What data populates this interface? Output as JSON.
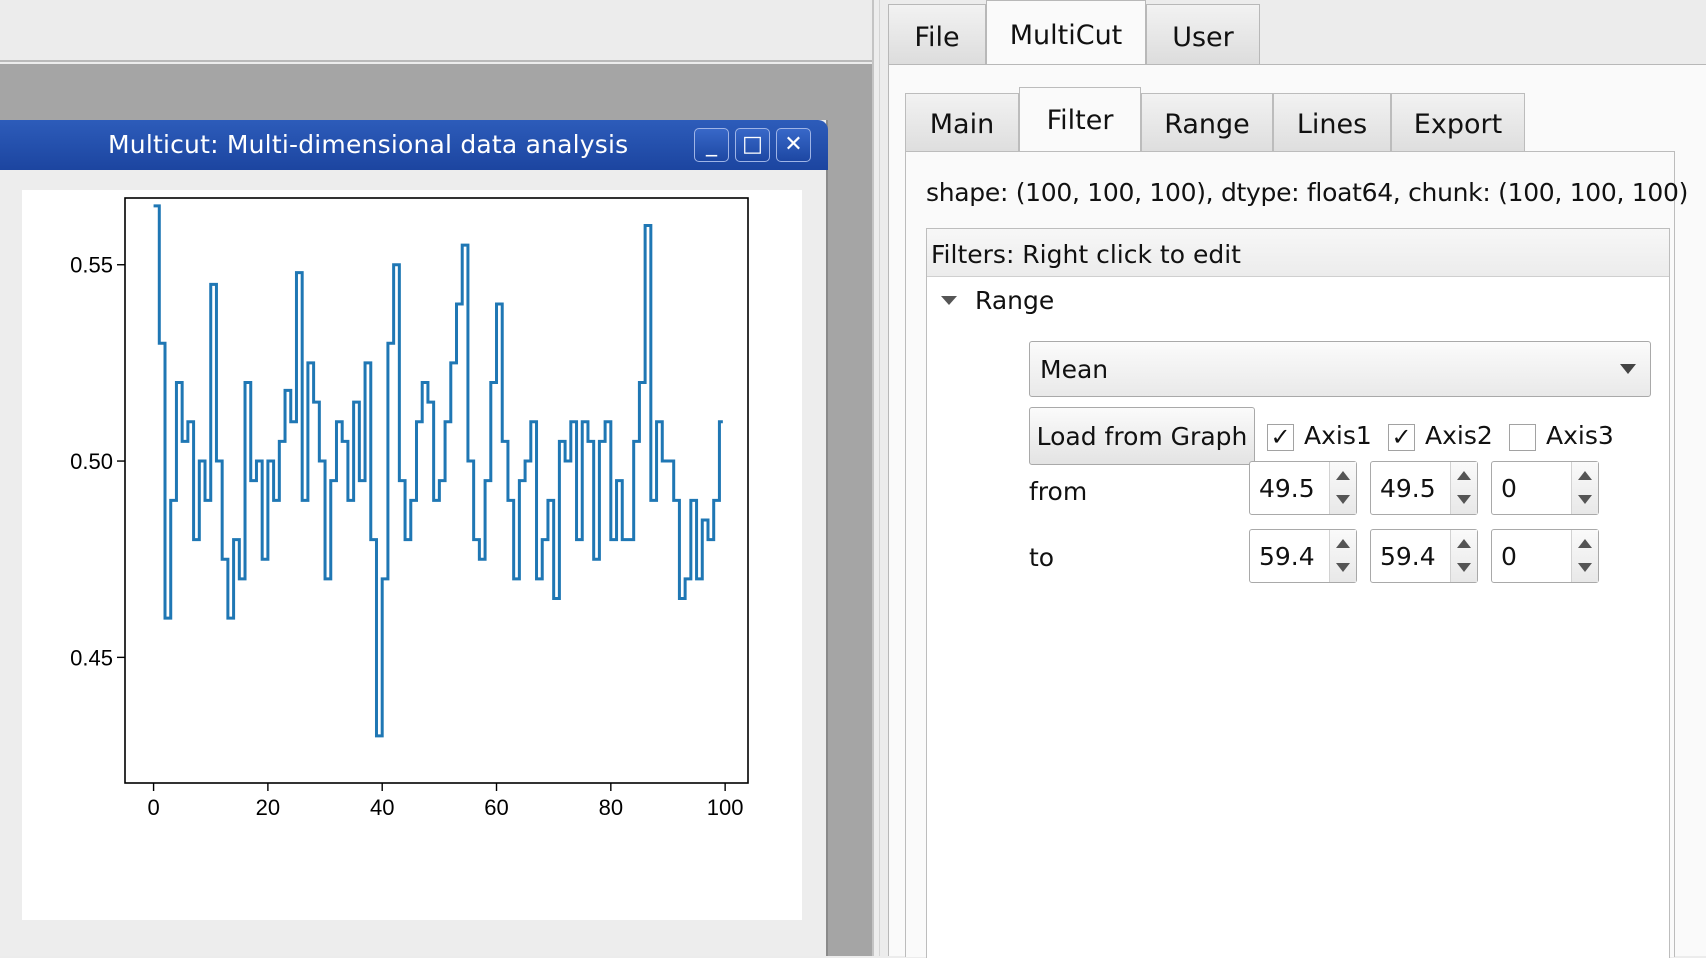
{
  "subwindow": {
    "title": "Multicut: Multi-dimensional data analysis",
    "minimize_glyph": "_",
    "maximize_glyph": "□",
    "close_glyph": "✕"
  },
  "outer_tabs": [
    {
      "label": "File",
      "active": false
    },
    {
      "label": "MultiCut",
      "active": true
    },
    {
      "label": "User",
      "active": false
    }
  ],
  "inner_tabs": [
    {
      "label": "Main",
      "active": false
    },
    {
      "label": "Filter",
      "active": true
    },
    {
      "label": "Range",
      "active": false
    },
    {
      "label": "Lines",
      "active": false
    },
    {
      "label": "Export",
      "active": false
    }
  ],
  "info": {
    "shape_text": "shape: (100, 100, 100), dtype: float64, chunk: (100, 100, 100)"
  },
  "filters": {
    "header": "Filters: Right click to edit",
    "range_label": "Range",
    "mode": "Mean",
    "load_button": "Load from Graph",
    "axes": [
      {
        "label": "Axis1",
        "checked": true
      },
      {
        "label": "Axis2",
        "checked": true
      },
      {
        "label": "Axis3",
        "checked": false
      }
    ],
    "check_glyph": "✓",
    "from_label": "from",
    "to_label": "to",
    "from_values": [
      "49.5",
      "49.5",
      "0"
    ],
    "to_values": [
      "59.4",
      "59.4",
      "0"
    ]
  },
  "chart_data": {
    "type": "line",
    "title": "",
    "xlabel": "",
    "ylabel": "",
    "xlim": [
      -5,
      104
    ],
    "ylim": [
      0.418,
      0.567
    ],
    "xticks": [
      0,
      20,
      40,
      60,
      80,
      100
    ],
    "yticks": [
      0.45,
      0.5,
      0.55
    ],
    "ytick_labels": [
      "0.45",
      "0.50",
      "0.55"
    ],
    "xtick_labels": [
      "0",
      "20",
      "40",
      "60",
      "80",
      "100"
    ],
    "line_color": "#1f77b4",
    "drawstyle": "steps",
    "x": [
      0,
      1,
      2,
      3,
      4,
      5,
      6,
      7,
      8,
      9,
      10,
      11,
      12,
      13,
      14,
      15,
      16,
      17,
      18,
      19,
      20,
      21,
      22,
      23,
      24,
      25,
      26,
      27,
      28,
      29,
      30,
      31,
      32,
      33,
      34,
      35,
      36,
      37,
      38,
      39,
      40,
      41,
      42,
      43,
      44,
      45,
      46,
      47,
      48,
      49,
      50,
      51,
      52,
      53,
      54,
      55,
      56,
      57,
      58,
      59,
      60,
      61,
      62,
      63,
      64,
      65,
      66,
      67,
      68,
      69,
      70,
      71,
      72,
      73,
      74,
      75,
      76,
      77,
      78,
      79,
      80,
      81,
      82,
      83,
      84,
      85,
      86,
      87,
      88,
      89,
      90,
      91,
      92,
      93,
      94,
      95,
      96,
      97,
      98,
      99
    ],
    "values": [
      0.565,
      0.53,
      0.46,
      0.49,
      0.52,
      0.505,
      0.51,
      0.48,
      0.5,
      0.49,
      0.545,
      0.5,
      0.475,
      0.46,
      0.48,
      0.47,
      0.52,
      0.495,
      0.5,
      0.475,
      0.5,
      0.49,
      0.505,
      0.518,
      0.51,
      0.548,
      0.49,
      0.525,
      0.515,
      0.5,
      0.47,
      0.495,
      0.51,
      0.505,
      0.49,
      0.515,
      0.495,
      0.525,
      0.48,
      0.43,
      0.47,
      0.53,
      0.55,
      0.495,
      0.48,
      0.49,
      0.51,
      0.52,
      0.515,
      0.49,
      0.495,
      0.51,
      0.525,
      0.54,
      0.555,
      0.5,
      0.48,
      0.475,
      0.495,
      0.52,
      0.54,
      0.505,
      0.49,
      0.47,
      0.495,
      0.5,
      0.51,
      0.47,
      0.48,
      0.49,
      0.465,
      0.505,
      0.5,
      0.51,
      0.48,
      0.51,
      0.505,
      0.475,
      0.505,
      0.51,
      0.48,
      0.495,
      0.48,
      0.48,
      0.505,
      0.52,
      0.56,
      0.49,
      0.51,
      0.5,
      0.5,
      0.49,
      0.465,
      0.47,
      0.49,
      0.47,
      0.485,
      0.48,
      0.49,
      0.51
    ]
  }
}
